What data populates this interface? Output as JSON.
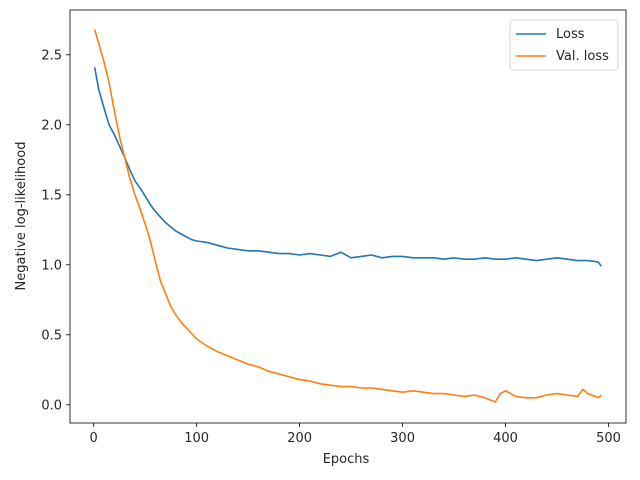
{
  "chart_data": {
    "type": "line",
    "title": "",
    "xlabel": "Epochs",
    "ylabel": "Negative log-likelihood",
    "xlim": [
      -23,
      517
    ],
    "ylim": [
      -0.13,
      2.82
    ],
    "xticks": [
      0,
      100,
      200,
      300,
      400,
      500
    ],
    "yticks": [
      0.0,
      0.5,
      1.0,
      1.5,
      2.0,
      2.5
    ],
    "xtick_labels": [
      "0",
      "100",
      "200",
      "300",
      "400",
      "500"
    ],
    "ytick_labels": [
      "0.0",
      "0.5",
      "1.0",
      "1.5",
      "2.0",
      "2.5"
    ],
    "grid": false,
    "legend_position": "top-right",
    "series": [
      {
        "name": "Loss",
        "color": "#1f77b4",
        "x": [
          1,
          5,
          10,
          15,
          20,
          25,
          30,
          35,
          40,
          45,
          50,
          55,
          60,
          65,
          70,
          75,
          80,
          85,
          90,
          95,
          100,
          110,
          120,
          130,
          140,
          150,
          160,
          170,
          180,
          190,
          200,
          210,
          220,
          230,
          240,
          250,
          260,
          270,
          280,
          290,
          300,
          310,
          320,
          330,
          340,
          350,
          360,
          370,
          380,
          390,
          400,
          410,
          420,
          430,
          440,
          450,
          460,
          470,
          480,
          490,
          493
        ],
        "y": [
          2.41,
          2.25,
          2.12,
          2.0,
          1.93,
          1.85,
          1.77,
          1.68,
          1.6,
          1.55,
          1.49,
          1.43,
          1.38,
          1.34,
          1.3,
          1.27,
          1.24,
          1.22,
          1.2,
          1.18,
          1.17,
          1.16,
          1.14,
          1.12,
          1.11,
          1.1,
          1.1,
          1.09,
          1.08,
          1.08,
          1.07,
          1.08,
          1.07,
          1.06,
          1.09,
          1.05,
          1.06,
          1.07,
          1.05,
          1.06,
          1.06,
          1.05,
          1.05,
          1.05,
          1.04,
          1.05,
          1.04,
          1.04,
          1.05,
          1.04,
          1.04,
          1.05,
          1.04,
          1.03,
          1.04,
          1.05,
          1.04,
          1.03,
          1.03,
          1.02,
          0.99
        ]
      },
      {
        "name": "Val. loss",
        "color": "#ff7f0e",
        "x": [
          1,
          5,
          10,
          15,
          20,
          25,
          30,
          35,
          40,
          45,
          50,
          55,
          60,
          65,
          70,
          75,
          80,
          85,
          90,
          95,
          100,
          110,
          120,
          130,
          140,
          150,
          160,
          170,
          180,
          190,
          200,
          210,
          220,
          230,
          240,
          250,
          260,
          270,
          280,
          290,
          300,
          310,
          320,
          330,
          340,
          350,
          360,
          370,
          380,
          390,
          395,
          400,
          410,
          420,
          430,
          440,
          450,
          460,
          470,
          475,
          480,
          490,
          493
        ],
        "y": [
          2.68,
          2.58,
          2.45,
          2.3,
          2.1,
          1.92,
          1.77,
          1.62,
          1.5,
          1.4,
          1.29,
          1.17,
          1.02,
          0.88,
          0.79,
          0.7,
          0.64,
          0.59,
          0.55,
          0.51,
          0.47,
          0.42,
          0.38,
          0.35,
          0.32,
          0.29,
          0.27,
          0.24,
          0.22,
          0.2,
          0.18,
          0.17,
          0.15,
          0.14,
          0.13,
          0.13,
          0.12,
          0.12,
          0.11,
          0.1,
          0.09,
          0.1,
          0.09,
          0.08,
          0.08,
          0.07,
          0.06,
          0.07,
          0.05,
          0.02,
          0.08,
          0.1,
          0.06,
          0.05,
          0.05,
          0.07,
          0.08,
          0.07,
          0.06,
          0.11,
          0.08,
          0.05,
          0.07
        ]
      }
    ]
  }
}
